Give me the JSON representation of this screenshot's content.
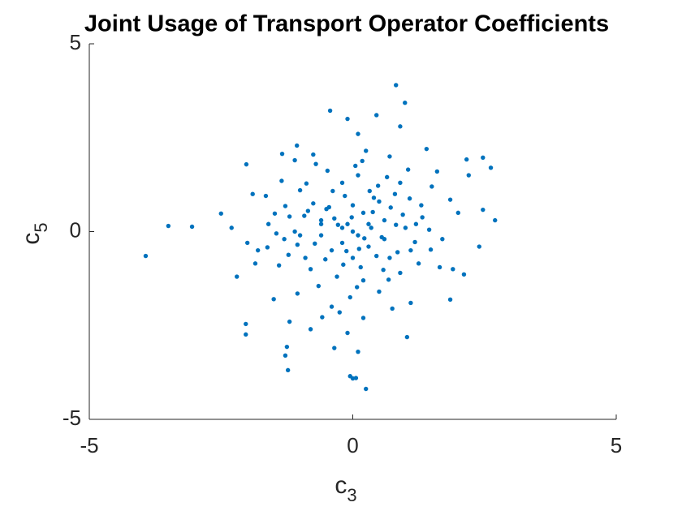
{
  "chart_data": {
    "type": "scatter",
    "title": "Joint Usage of Transport Operator Coefficients",
    "xlabel": {
      "base": "c",
      "sub": "3"
    },
    "ylabel": {
      "base": "c",
      "sub": "5"
    },
    "xlim": [
      -5,
      5
    ],
    "ylim": [
      -5,
      5
    ],
    "xticks": [
      -5,
      0,
      5
    ],
    "yticks": [
      -5,
      0,
      5
    ],
    "grid": false,
    "series": [
      {
        "color": "#0072bd",
        "x": [
          -3.93,
          -3.5,
          -3.05,
          0.82,
          0.99,
          -0.43,
          0,
          0.25,
          0.06,
          -0.05,
          2.7,
          2.62,
          2.47,
          2.16,
          2.47,
          -2.5,
          -2.03,
          -2.03,
          -1.25,
          -1.23,
          -1.28,
          1.85,
          2.11,
          1.03,
          -2.02,
          -1.34,
          -1.06,
          -0.1,
          0.3,
          -0.5,
          0.8,
          -0.9,
          0.1,
          -0.3,
          0.6,
          -1.2,
          1.1,
          0.0,
          0.2,
          -0.2,
          0.4,
          -0.6,
          0.9,
          -1.0,
          1.3,
          -1.4,
          0.5,
          -0.7,
          0.7,
          -0.4,
          0.2,
          1.5,
          -1.6,
          1.7,
          -1.8,
          0.1,
          -0.1,
          0.35,
          -0.35,
          0.55,
          -0.75,
          0.95,
          -1.05,
          1.25,
          -1.35,
          0.15,
          -0.15,
          0.65,
          -0.65,
          1.45,
          -1.45,
          0.05,
          -0.05,
          0.85,
          -0.85,
          1.05,
          -1.05,
          0.25,
          -0.25,
          1.85,
          -1.85,
          0.45,
          -0.45,
          1.65,
          -1.65,
          0.75,
          -0.75,
          0.1,
          -0.2,
          0.3,
          -0.4,
          0.5,
          -0.6,
          0.7,
          -0.8,
          0.9,
          -1.1,
          1.2,
          -1.3,
          0.0,
          0.0,
          0.2,
          -0.2,
          1.0,
          -1.0,
          0.6,
          -0.6,
          2.0,
          -2.0,
          1.9,
          -1.9,
          2.2,
          -2.2,
          1.4,
          -1.2,
          0.9,
          -0.8,
          0.45,
          -0.1,
          0.1,
          -0.35,
          1.6,
          -1.5,
          2.4,
          -2.3,
          1.1,
          -1.1,
          0.38,
          -0.28,
          0.12,
          -0.52,
          0.72,
          -0.18,
          0.48,
          -0.92,
          1.18,
          -0.48,
          0.58,
          -1.22,
          0.82,
          -0.02,
          0.22,
          -0.12,
          0.32,
          -0.72,
          1.32,
          -1.62,
          0.08,
          -0.38,
          0.68,
          -0.88,
          1.08,
          -1.28,
          1.48,
          -1.48,
          0.18,
          -0.58
        ],
        "values": [
          -0.65,
          0.15,
          0.13,
          3.9,
          3.43,
          3.22,
          -3.91,
          -4.19,
          -3.9,
          -3.85,
          0.3,
          1.7,
          1.97,
          1.92,
          0.58,
          0.48,
          -2.74,
          -2.46,
          -3.07,
          -3.69,
          -3.3,
          -1.81,
          -1.14,
          -2.81,
          1.79,
          2.07,
          2.29,
          0.2,
          -0.4,
          0.6,
          1.0,
          -0.7,
          1.5,
          -1.2,
          0.3,
          0.4,
          -0.5,
          0.0,
          0.5,
          -0.3,
          0.9,
          -0.1,
          -1.1,
          1.1,
          0.7,
          -0.9,
          -1.6,
          1.8,
          2.0,
          -2.0,
          -2.3,
          1.2,
          0.2,
          -0.2,
          -0.5,
          2.6,
          -2.7,
          0.1,
          0.35,
          -0.15,
          0.75,
          0.45,
          -0.35,
          -0.85,
          1.35,
          -0.95,
          0.95,
          1.45,
          -1.45,
          0.05,
          -0.05,
          1.75,
          -1.75,
          -0.55,
          0.55,
          1.65,
          -1.65,
          2.15,
          -2.15,
          0.85,
          -0.85,
          -0.65,
          0.65,
          -0.95,
          0.95,
          -2.05,
          2.05,
          -0.1,
          0.1,
          0.2,
          -0.5,
          0.8,
          0.3,
          -0.7,
          -1.0,
          1.3,
          0.0,
          0.2,
          -0.2,
          0.7,
          -0.7,
          -1.3,
          1.3,
          0.1,
          -0.1,
          -0.2,
          0.2,
          0.5,
          -0.3,
          -1.0,
          1.0,
          1.5,
          -1.2,
          2.2,
          -2.4,
          2.8,
          -2.6,
          3.1,
          3.0,
          -3.2,
          -3.1,
          1.6,
          -1.8,
          -0.4,
          0.1,
          -1.9,
          1.9,
          0.52,
          0.18,
          -0.46,
          -0.74,
          0.64,
          -0.88,
          1.22,
          0.42,
          -0.28,
          1.62,
          -1.02,
          -0.62,
          0.18,
          0.38,
          -0.18,
          -0.52,
          1.08,
          -0.32,
          0.38,
          -0.42,
          -1.48,
          1.08,
          -1.28,
          1.28,
          0.88,
          0.68,
          -0.48,
          0.48,
          1.88,
          -2.28
        ]
      }
    ]
  }
}
